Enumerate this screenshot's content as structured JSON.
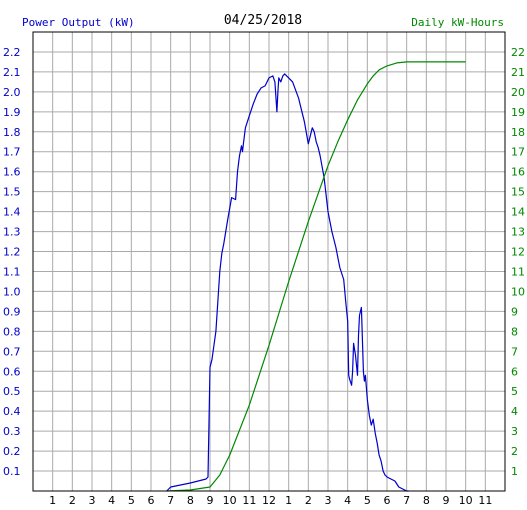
{
  "chart_data": {
    "type": "line",
    "title": "04/25/2018",
    "left_label": "Power Output (kW)",
    "right_label": "Daily kW-Hours",
    "x_ticks": [
      "1",
      "2",
      "3",
      "4",
      "5",
      "6",
      "7",
      "8",
      "9",
      "10",
      "11",
      "12",
      "1",
      "2",
      "3",
      "4",
      "5",
      "6",
      "7",
      "8",
      "9",
      "10",
      "11"
    ],
    "y_left_range": [
      0,
      2.3
    ],
    "y_left_ticks": [
      "0.1",
      "0.2",
      "0.3",
      "0.4",
      "0.5",
      "0.6",
      "0.7",
      "0.8",
      "0.9",
      "1.0",
      "1.1",
      "1.2",
      "1.3",
      "1.4",
      "1.5",
      "1.6",
      "1.7",
      "1.8",
      "1.9",
      "2.0",
      "2.1",
      "2.2"
    ],
    "y_right_range": [
      0,
      23
    ],
    "y_right_ticks": [
      "1",
      "2",
      "3",
      "4",
      "5",
      "6",
      "7",
      "8",
      "9",
      "10",
      "11",
      "12",
      "13",
      "14",
      "15",
      "16",
      "17",
      "18",
      "19",
      "20",
      "21",
      "22"
    ],
    "grid": true,
    "colors": {
      "power": "#0000cc",
      "energy": "#008800",
      "left_text": "#0000cc",
      "right_text": "#008800",
      "grid": "#aaaaaa"
    },
    "series": [
      {
        "axis": "left",
        "x": [
          6.8,
          7.0,
          7.5,
          8.0,
          8.4,
          8.8,
          8.9,
          9.0,
          9.1,
          9.3,
          9.5,
          9.6,
          9.7,
          9.9,
          10.1,
          10.3,
          10.4,
          10.5,
          10.6,
          10.65,
          10.7,
          10.8,
          11.0,
          11.2,
          11.4,
          11.6,
          11.8,
          12.0,
          12.2,
          12.3,
          12.4,
          12.45,
          12.5,
          12.6,
          12.7,
          12.8,
          12.9,
          13.0,
          13.2,
          13.5,
          13.8,
          14.0,
          14.2,
          14.3,
          14.4,
          14.5,
          14.6,
          14.8,
          15.0,
          15.2,
          15.4,
          15.6,
          15.8,
          15.9,
          16.0,
          16.05,
          16.1,
          16.2,
          16.25,
          16.3,
          16.4,
          16.5,
          16.55,
          16.6,
          16.7,
          16.8,
          16.85,
          16.9,
          17.0,
          17.1,
          17.2,
          17.3,
          17.4,
          17.5,
          17.6,
          17.7,
          17.8,
          17.9,
          18.0,
          18.2,
          18.4,
          18.6,
          18.8,
          19.0,
          19.1
        ],
        "y": [
          0.0,
          0.02,
          0.03,
          0.04,
          0.05,
          0.06,
          0.07,
          0.62,
          0.66,
          0.8,
          1.1,
          1.19,
          1.24,
          1.36,
          1.47,
          1.46,
          1.6,
          1.68,
          1.73,
          1.7,
          1.74,
          1.82,
          1.88,
          1.94,
          1.99,
          2.02,
          2.03,
          2.07,
          2.08,
          2.05,
          1.9,
          2.0,
          2.07,
          2.05,
          2.08,
          2.09,
          2.08,
          2.07,
          2.05,
          1.97,
          1.85,
          1.74,
          1.82,
          1.8,
          1.75,
          1.72,
          1.68,
          1.57,
          1.4,
          1.3,
          1.22,
          1.12,
          1.06,
          0.95,
          0.85,
          0.58,
          0.56,
          0.53,
          0.6,
          0.74,
          0.68,
          0.58,
          0.78,
          0.88,
          0.92,
          0.6,
          0.55,
          0.58,
          0.46,
          0.38,
          0.33,
          0.36,
          0.29,
          0.24,
          0.18,
          0.15,
          0.1,
          0.08,
          0.07,
          0.06,
          0.05,
          0.02,
          0.01,
          0.0,
          0.0
        ]
      },
      {
        "axis": "right",
        "x": [
          6.8,
          8.0,
          9.0,
          9.5,
          10.0,
          11.0,
          12.0,
          13.0,
          14.0,
          15.0,
          15.5,
          16.0,
          16.5,
          17.0,
          17.3,
          17.6,
          18.0,
          18.5,
          19.0,
          20.0,
          21.0,
          22.0
        ],
        "y": [
          0.0,
          0.05,
          0.2,
          0.8,
          1.8,
          4.3,
          7.3,
          10.5,
          13.5,
          16.3,
          17.5,
          18.6,
          19.6,
          20.4,
          20.8,
          21.1,
          21.3,
          21.45,
          21.5,
          21.5,
          21.5,
          21.5
        ]
      }
    ]
  }
}
